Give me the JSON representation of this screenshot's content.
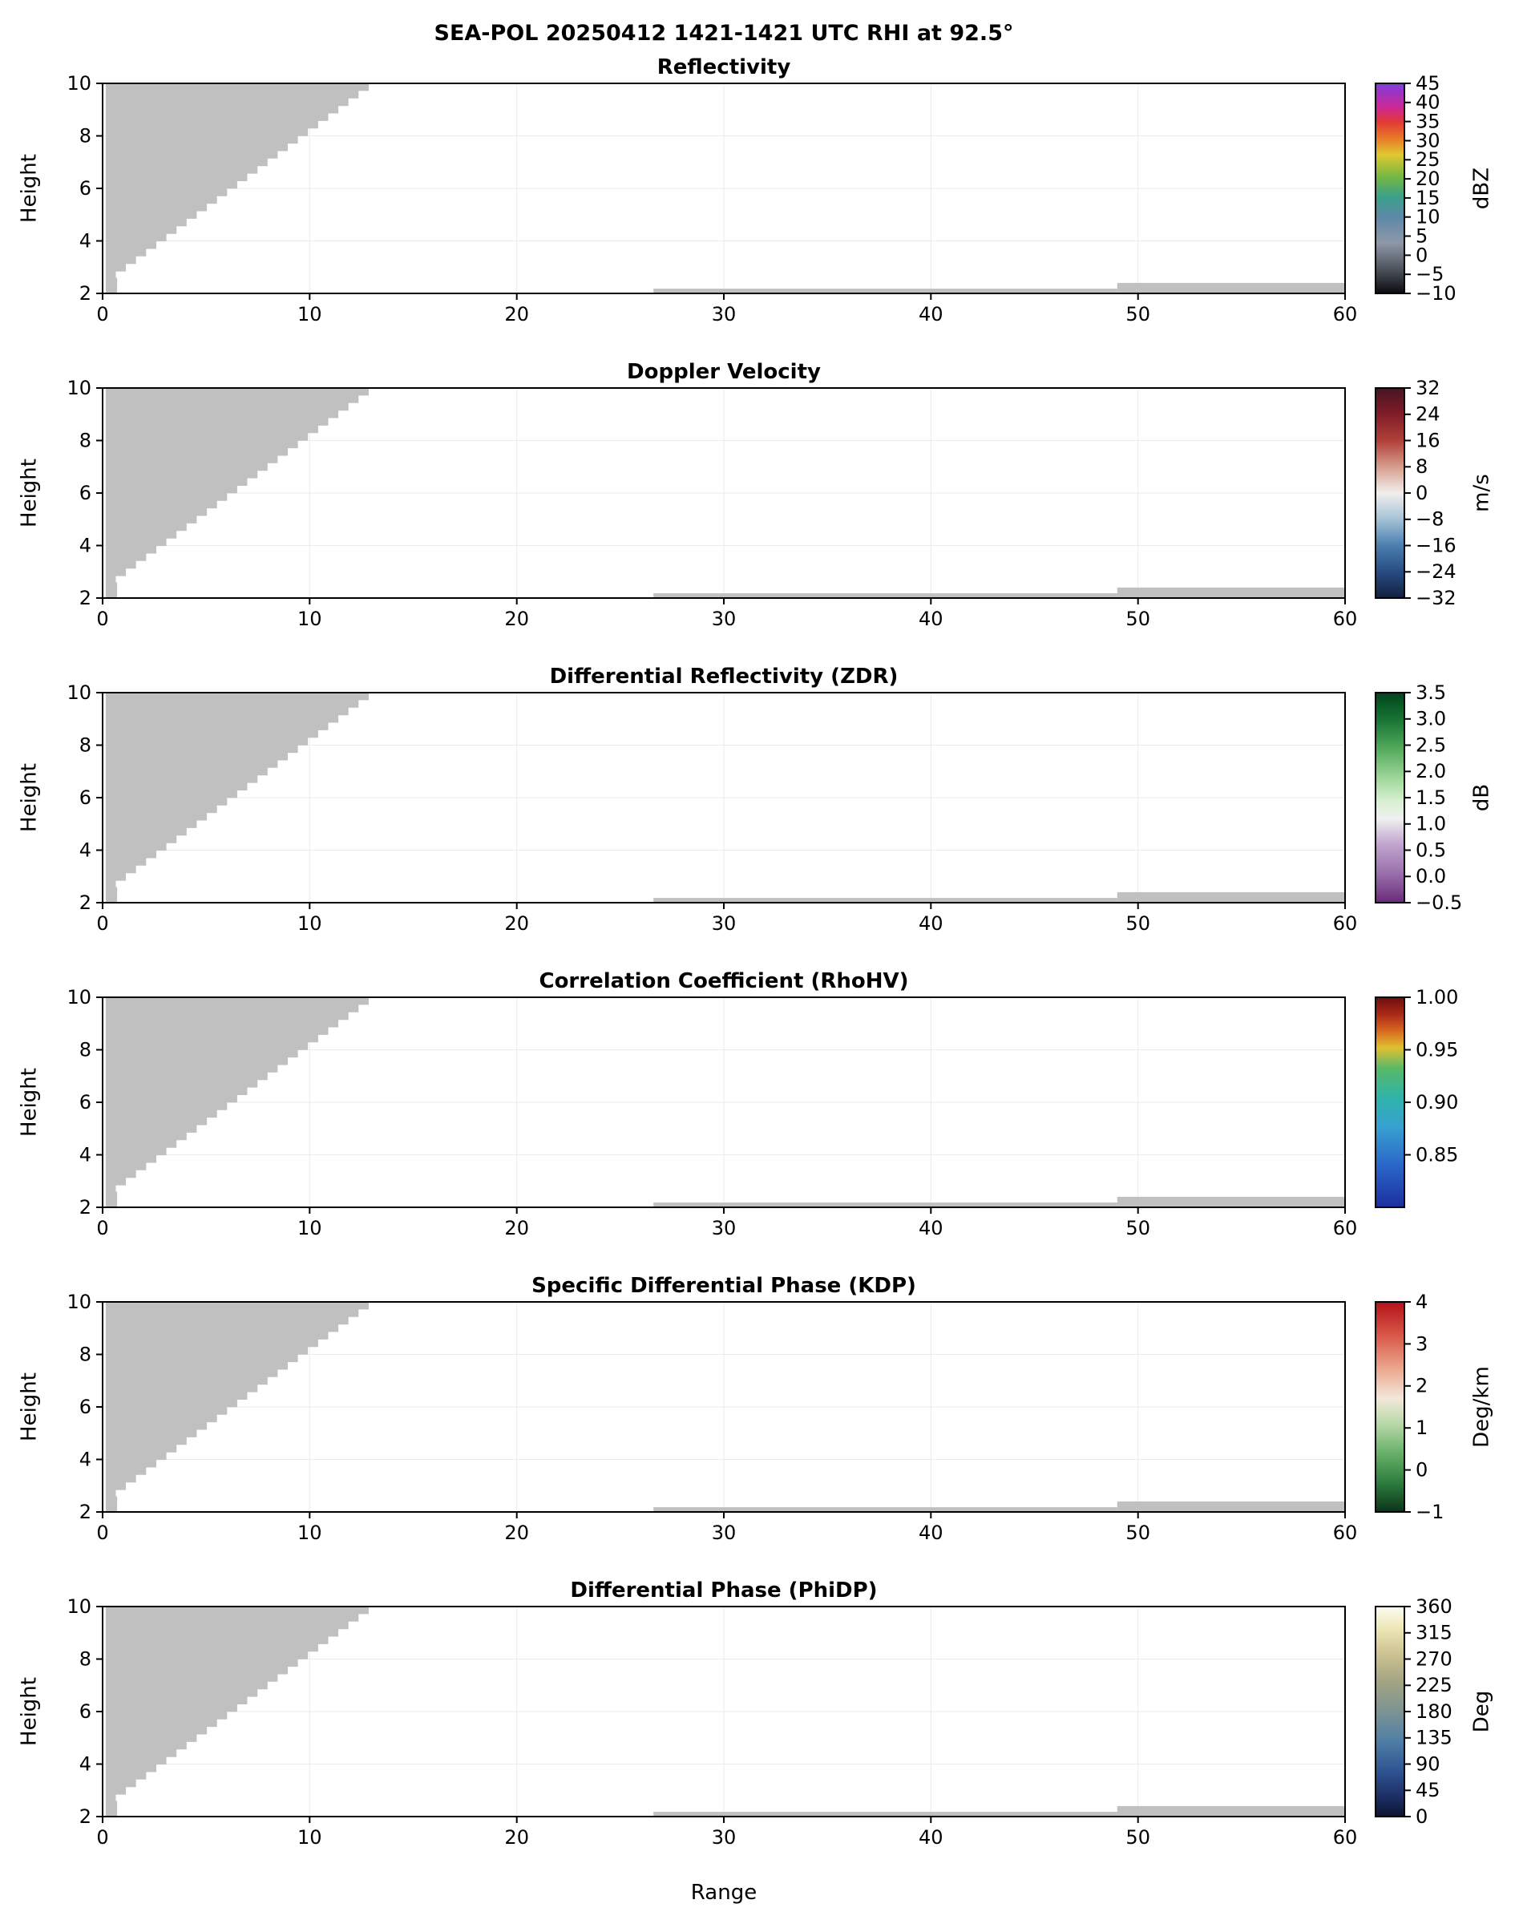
{
  "figure": {
    "suptitle": "SEA-POL 20250412 1421-1421 UTC RHI at 92.5°",
    "xlabel": "Range",
    "ylabel": "Height",
    "background": "#ffffff",
    "echo_color": "#c0c0c0",
    "grid_color": "#ebebeb",
    "frame_color": "#000000"
  },
  "chart_data": {
    "type": "heatmap",
    "x_range": [
      0,
      60
    ],
    "y_range": [
      2,
      10
    ],
    "x_ticks": [
      0,
      10,
      20,
      30,
      40,
      50,
      60
    ],
    "y_ticks": [
      2,
      4,
      6,
      8,
      10
    ],
    "xlabel": "Range",
    "ylabel": "Height",
    "grid": true,
    "legend_position": "right-colorbar",
    "panels": [
      {
        "id": "reflectivity",
        "title": "Reflectivity",
        "unit": "dBZ",
        "vmin": -10,
        "vmax": 45,
        "tick_values": [
          45,
          40,
          35,
          30,
          25,
          20,
          15,
          10,
          5,
          0,
          -5,
          -10
        ],
        "tick_labels": [
          "45",
          "40",
          "35",
          "30",
          "25",
          "20",
          "15",
          "10",
          "5",
          "0",
          "−5",
          "−10"
        ],
        "stops": [
          [
            0,
            "#8040e0"
          ],
          [
            0.06,
            "#a830b8"
          ],
          [
            0.12,
            "#d02890"
          ],
          [
            0.18,
            "#e03838"
          ],
          [
            0.26,
            "#e87828"
          ],
          [
            0.34,
            "#e0c830"
          ],
          [
            0.44,
            "#78b840"
          ],
          [
            0.54,
            "#3ba08a"
          ],
          [
            0.64,
            "#5e88a8"
          ],
          [
            0.76,
            "#8e98a8"
          ],
          [
            0.88,
            "#50555e"
          ],
          [
            1,
            "#0b0b10"
          ]
        ]
      },
      {
        "id": "doppler-velocity",
        "title": "Doppler Velocity",
        "unit": "m/s",
        "vmin": -32,
        "vmax": 32,
        "tick_values": [
          32,
          24,
          16,
          8,
          0,
          -8,
          -16,
          -24,
          -32
        ],
        "tick_labels": [
          "32",
          "24",
          "16",
          "8",
          "0",
          "−8",
          "−16",
          "−24",
          "−32"
        ],
        "stops": [
          [
            0,
            "#461523"
          ],
          [
            0.12,
            "#7e1c28"
          ],
          [
            0.25,
            "#b04038"
          ],
          [
            0.38,
            "#d8a090"
          ],
          [
            0.5,
            "#f2efed"
          ],
          [
            0.62,
            "#a8c4d8"
          ],
          [
            0.75,
            "#4a7fb0"
          ],
          [
            0.88,
            "#274a80"
          ],
          [
            1,
            "#13203f"
          ]
        ]
      },
      {
        "id": "zdr",
        "title": "Differential Reflectivity (ZDR)",
        "unit": "dB",
        "vmin": -0.5,
        "vmax": 3.5,
        "tick_values": [
          3.5,
          3.0,
          2.5,
          2.0,
          1.5,
          1.0,
          0.5,
          0.0,
          -0.5
        ],
        "tick_labels": [
          "3.5",
          "3.0",
          "2.5",
          "2.0",
          "1.5",
          "1.0",
          "0.5",
          "0.0",
          "−0.5"
        ],
        "stops": [
          [
            0,
            "#00441b"
          ],
          [
            0.14,
            "#1b7837"
          ],
          [
            0.28,
            "#5aae61"
          ],
          [
            0.42,
            "#a6dba0"
          ],
          [
            0.52,
            "#d9f0d3"
          ],
          [
            0.6,
            "#f0f0f0"
          ],
          [
            0.72,
            "#c2a5cf"
          ],
          [
            0.86,
            "#9970ab"
          ],
          [
            1,
            "#6a2a78"
          ]
        ]
      },
      {
        "id": "rhohv",
        "title": "Correlation Coefficient (RhoHV)",
        "unit": "",
        "vmin": 0.8,
        "vmax": 1.0,
        "tick_values": [
          1.0,
          0.95,
          0.9,
          0.85
        ],
        "tick_labels": [
          "1.00",
          "0.95",
          "0.90",
          "0.85"
        ],
        "stops": [
          [
            0,
            "#6e0e0e"
          ],
          [
            0.08,
            "#a82818"
          ],
          [
            0.16,
            "#d86820"
          ],
          [
            0.24,
            "#e0c030"
          ],
          [
            0.34,
            "#58b868"
          ],
          [
            0.48,
            "#2fb4ac"
          ],
          [
            0.62,
            "#38a0d0"
          ],
          [
            0.8,
            "#2a66c8"
          ],
          [
            1,
            "#1c2f9e"
          ]
        ]
      },
      {
        "id": "kdp",
        "title": "Specific Differential Phase (KDP)",
        "unit": "Deg/km",
        "vmin": -1,
        "vmax": 4,
        "tick_values": [
          4,
          3,
          2,
          1,
          0,
          -1
        ],
        "tick_labels": [
          "4",
          "3",
          "2",
          "1",
          "0",
          "−1"
        ],
        "stops": [
          [
            0,
            "#b5121b"
          ],
          [
            0.16,
            "#d85848"
          ],
          [
            0.32,
            "#eba88f"
          ],
          [
            0.46,
            "#f2e8da"
          ],
          [
            0.58,
            "#b8d8a8"
          ],
          [
            0.72,
            "#68b068"
          ],
          [
            0.86,
            "#2d7d3f"
          ],
          [
            1,
            "#0c3318"
          ]
        ]
      },
      {
        "id": "phidp",
        "title": "Differential Phase (PhiDP)",
        "unit": "Deg",
        "vmin": 0,
        "vmax": 360,
        "tick_values": [
          360,
          315,
          270,
          225,
          180,
          135,
          90,
          45,
          0
        ],
        "tick_labels": [
          "360",
          "315",
          "270",
          "225",
          "180",
          "135",
          "90",
          "45",
          "0"
        ],
        "stops": [
          [
            0,
            "#fbfbf2"
          ],
          [
            0.1,
            "#eee8b8"
          ],
          [
            0.22,
            "#cfc493"
          ],
          [
            0.36,
            "#a3a383"
          ],
          [
            0.5,
            "#7c9492"
          ],
          [
            0.64,
            "#4f7fa6"
          ],
          [
            0.78,
            "#2f5592"
          ],
          [
            0.9,
            "#1d2f66"
          ],
          [
            1,
            "#0d1433"
          ]
        ]
      }
    ],
    "regions": {
      "comment": "gray low-level echo regions, identical in every panel, data coordinates",
      "wedge": {
        "x0": 0.15,
        "y0": 2.55,
        "x1": 12.85,
        "y1": 10.0,
        "steps": 26
      },
      "notch": {
        "x0": 0.15,
        "x1": 0.7,
        "y0": 2.0,
        "y1": 2.6
      },
      "strips": [
        {
          "x0": 26.6,
          "x1": 49.0,
          "y0": 2.0,
          "y1": 2.18
        },
        {
          "x0": 49.0,
          "x1": 60.0,
          "y0": 2.0,
          "y1": 2.4
        }
      ]
    }
  }
}
